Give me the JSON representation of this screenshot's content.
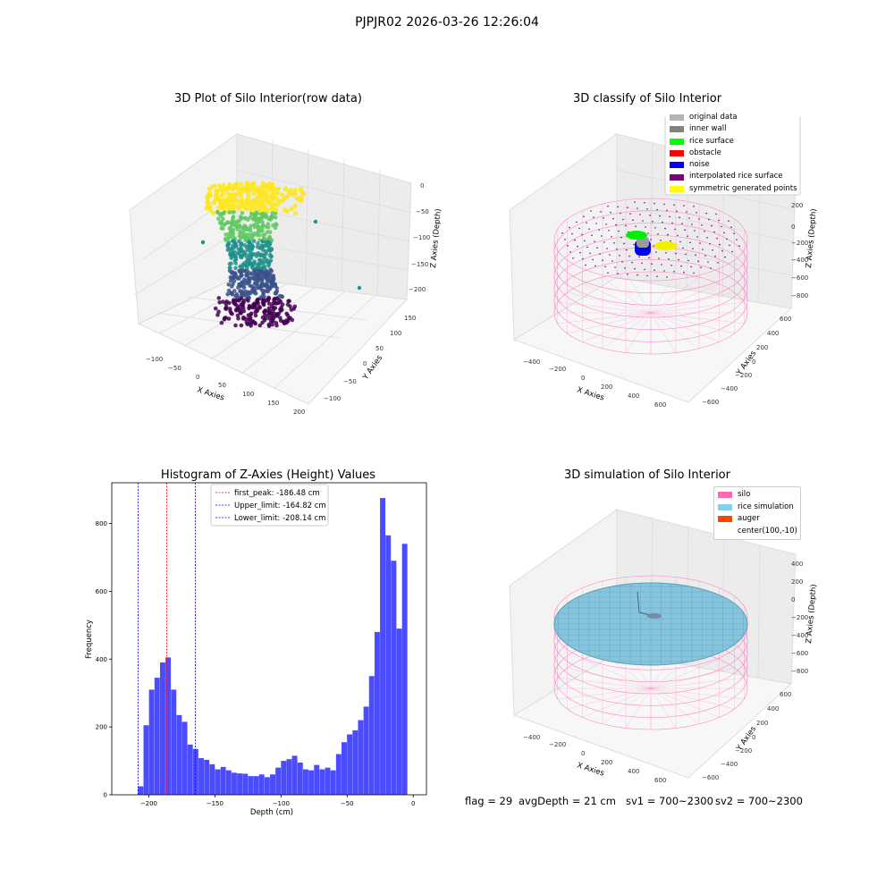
{
  "figure": {
    "suptitle": "PJPJR02 2026-03-26 12:26:04",
    "footer": {
      "flag": "flag = 29",
      "avg_depth": "avgDepth = 21 cm",
      "sv1": "sv1 = 700~2300",
      "sv2": "sv2 = 700~2300"
    }
  },
  "panels": {
    "raw": {
      "title": "3D Plot of Silo Interior(row data)",
      "xlabel": "X Axies",
      "ylabel": "Y Axies",
      "zlabel": "Z Axies (Depth)",
      "xticks": [
        "−100",
        "−50",
        "0",
        "50",
        "100",
        "150",
        "200"
      ],
      "yticks": [
        "−100",
        "−50",
        "0",
        "50",
        "100",
        "150"
      ],
      "zticks": [
        "0",
        "−50",
        "−100",
        "−150",
        "−200"
      ],
      "colormap": [
        "#440154",
        "#3b528b",
        "#21918c",
        "#5ec962",
        "#fde725"
      ]
    },
    "classify": {
      "title": "3D classify of Silo Interior",
      "xlabel": "X Axies",
      "ylabel": "Y Axies",
      "zlabel": "Z Axies (Depth)",
      "xticks": [
        "−400",
        "−200",
        "0",
        "200",
        "400",
        "600"
      ],
      "yticks": [
        "−600",
        "−400",
        "−200",
        "0",
        "200",
        "400",
        "600"
      ],
      "zticks": [
        "400",
        "200",
        "0",
        "−200",
        "−400",
        "−600",
        "−800"
      ],
      "legend": [
        {
          "label": "original data",
          "color": "#b4b4b4"
        },
        {
          "label": "inner wall",
          "color": "#808080"
        },
        {
          "label": "rice surface",
          "color": "#00ff00"
        },
        {
          "label": "obstacle",
          "color": "#ff0000"
        },
        {
          "label": "noise",
          "color": "#0000ff"
        },
        {
          "label": "interpolated rice surface",
          "color": "#800080"
        },
        {
          "label": "symmetric generated points",
          "color": "#ffff00"
        }
      ]
    },
    "simulation": {
      "title": "3D simulation of Silo Interior",
      "xlabel": "X Axies",
      "ylabel": "Y Axies",
      "zlabel": "Z Axies (Depth)",
      "xticks": [
        "−400",
        "−200",
        "0",
        "200",
        "400",
        "600"
      ],
      "yticks": [
        "−600",
        "−400",
        "−200",
        "0",
        "200",
        "400",
        "600"
      ],
      "zticks": [
        "400",
        "200",
        "0",
        "−200",
        "−400",
        "−600",
        "−800"
      ],
      "legend": [
        {
          "label": "silo",
          "color": "#ff69b4"
        },
        {
          "label": "rice simulation",
          "color": "#87ceeb"
        },
        {
          "label": "auger",
          "color": "#ff4500"
        },
        {
          "label": "center(100,-10)",
          "color": ""
        }
      ]
    }
  },
  "chart_data": [
    {
      "type": "bar",
      "title": "Histogram of Z-Axies (Height) Values",
      "xlabel": "Depth (cm)",
      "ylabel": "Frequency",
      "xlim": [
        -228,
        10
      ],
      "ylim": [
        0,
        920
      ],
      "xticks": [
        -200,
        -150,
        -100,
        -50,
        0
      ],
      "yticks": [
        0,
        200,
        400,
        600,
        800
      ],
      "bar_color": "#4b4bff",
      "bin_edges_start": -208.14,
      "bin_width": 4.16,
      "values": [
        25,
        205,
        310,
        345,
        390,
        405,
        310,
        235,
        215,
        148,
        135,
        108,
        103,
        90,
        75,
        82,
        72,
        65,
        63,
        62,
        55,
        55,
        60,
        52,
        60,
        80,
        100,
        105,
        115,
        95,
        75,
        72,
        88,
        75,
        80,
        72,
        120,
        155,
        178,
        190,
        220,
        260,
        350,
        480,
        875,
        765,
        690,
        490,
        740
      ],
      "vlines": [
        {
          "label": "first_peak: -186.48 cm",
          "x": -186.48,
          "color": "#ff0000"
        },
        {
          "label": "Upper_limit: -164.82 cm",
          "x": -164.82,
          "color": "#0000ff"
        },
        {
          "label": "Lower_limit: -208.14 cm",
          "x": -208.14,
          "color": "#0000ff"
        }
      ]
    }
  ]
}
